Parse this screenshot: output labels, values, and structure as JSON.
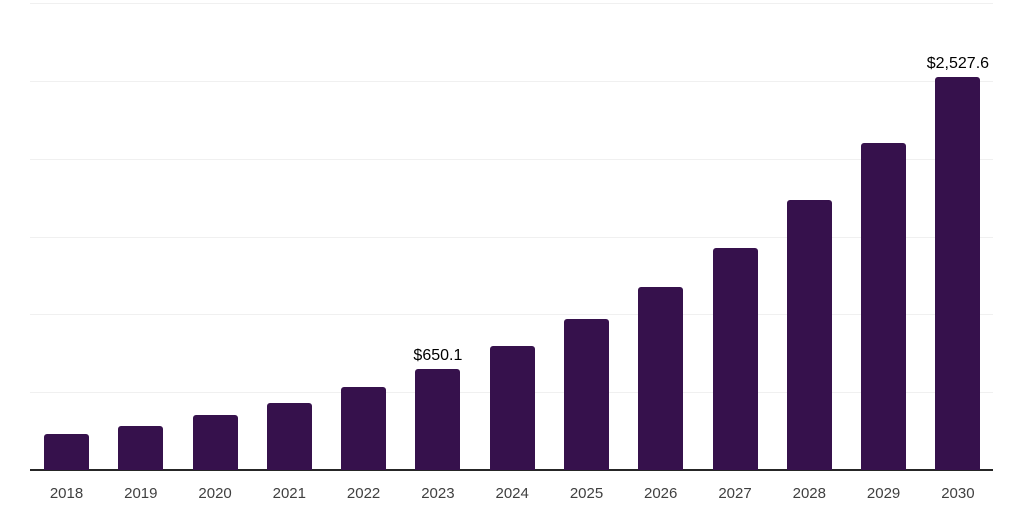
{
  "chart_data": {
    "type": "bar",
    "title": "",
    "xlabel": "",
    "ylabel": "",
    "categories": [
      "2018",
      "2019",
      "2020",
      "2021",
      "2022",
      "2023",
      "2024",
      "2025",
      "2026",
      "2027",
      "2028",
      "2029",
      "2030"
    ],
    "values": [
      232,
      281,
      351,
      431,
      531,
      650.1,
      798,
      970,
      1177,
      1429,
      1737,
      2099,
      2527.6
    ],
    "labeled_points": [
      {
        "category": "2023",
        "label": "$650.1"
      },
      {
        "category": "2030",
        "label": "$2,527.6"
      }
    ],
    "ylim": [
      0,
      3000
    ],
    "gridline_interval": 500,
    "grid": true,
    "legend": false,
    "y_axis_labels_visible": false,
    "colors": {
      "bar": "#36114C",
      "axis_line": "#262626",
      "gridline": "#f0f0f0",
      "tick_label": "#404040",
      "value_label": "#000000",
      "background": "#ffffff"
    }
  }
}
